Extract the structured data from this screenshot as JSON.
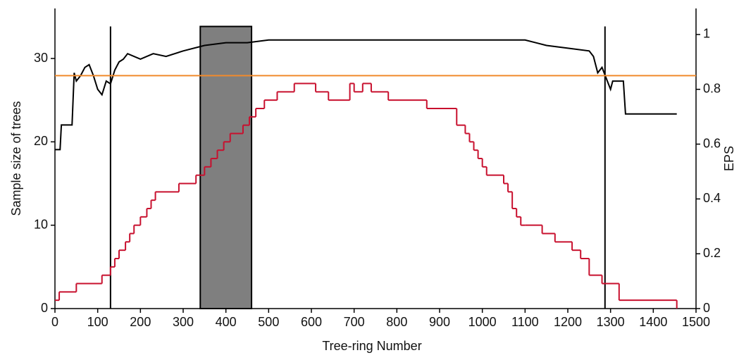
{
  "chart_data": {
    "type": "line",
    "xlabel": "Tree-ring Number",
    "ylabel": "Sample size of trees",
    "y2label": "EPS",
    "xlim": [
      0,
      1500
    ],
    "xticks": [
      0,
      100,
      200,
      300,
      400,
      500,
      600,
      700,
      800,
      900,
      1000,
      1100,
      1200,
      1300,
      1400,
      1500
    ],
    "ylim": [
      0,
      36
    ],
    "yticks": [
      0,
      10,
      20,
      30
    ],
    "y2lim": [
      0,
      1.095
    ],
    "y2ticks": [
      0,
      0.2,
      0.4,
      0.6,
      0.8,
      1
    ],
    "threshold": {
      "value": 0.85,
      "axis": "y2",
      "color": "#f08a2c"
    },
    "vlines": [
      130,
      1287
    ],
    "shaded": {
      "range": [
        340,
        460
      ],
      "color": "#7f7f7f"
    },
    "series": [
      {
        "name": "Sample size",
        "color": "#c8102e",
        "step": true,
        "x": [
          0,
          10,
          50,
          110,
          130,
          140,
          150,
          165,
          175,
          185,
          200,
          215,
          225,
          235,
          290,
          330,
          350,
          365,
          380,
          395,
          410,
          440,
          455,
          470,
          490,
          520,
          560,
          610,
          640,
          690,
          700,
          720,
          740,
          780,
          870,
          940,
          960,
          970,
          980,
          990,
          1000,
          1010,
          1050,
          1060,
          1070,
          1080,
          1090,
          1100,
          1140,
          1170,
          1210,
          1230,
          1250,
          1280,
          1320,
          1455
        ],
        "values": [
          1,
          2,
          3,
          4,
          5,
          6,
          7,
          8,
          9,
          10,
          11,
          12,
          13,
          14,
          15,
          16,
          17,
          18,
          19,
          20,
          21,
          22,
          23,
          24,
          25,
          26,
          27,
          26,
          25,
          27,
          26,
          27,
          26,
          25,
          24,
          22,
          21,
          20,
          19,
          18,
          17,
          16,
          15,
          14,
          12,
          11,
          10,
          10,
          9,
          8,
          7,
          6,
          4,
          3,
          1,
          0
        ]
      },
      {
        "name": "EPS",
        "color": "#000000",
        "axis": "y2",
        "x": [
          0,
          12,
          15,
          40,
          45,
          50,
          60,
          70,
          80,
          90,
          100,
          110,
          120,
          130,
          140,
          150,
          160,
          170,
          200,
          230,
          260,
          300,
          350,
          400,
          450,
          500,
          600,
          700,
          800,
          900,
          1000,
          1100,
          1150,
          1200,
          1250,
          1260,
          1270,
          1280,
          1290,
          1300,
          1305,
          1330,
          1335,
          1455
        ],
        "values": [
          0.58,
          0.58,
          0.67,
          0.67,
          0.86,
          0.83,
          0.85,
          0.88,
          0.89,
          0.85,
          0.8,
          0.78,
          0.83,
          0.82,
          0.87,
          0.9,
          0.91,
          0.93,
          0.91,
          0.93,
          0.92,
          0.94,
          0.96,
          0.97,
          0.97,
          0.98,
          0.98,
          0.98,
          0.98,
          0.98,
          0.98,
          0.98,
          0.96,
          0.95,
          0.94,
          0.92,
          0.86,
          0.88,
          0.84,
          0.8,
          0.83,
          0.83,
          0.71,
          0.71
        ]
      }
    ]
  }
}
